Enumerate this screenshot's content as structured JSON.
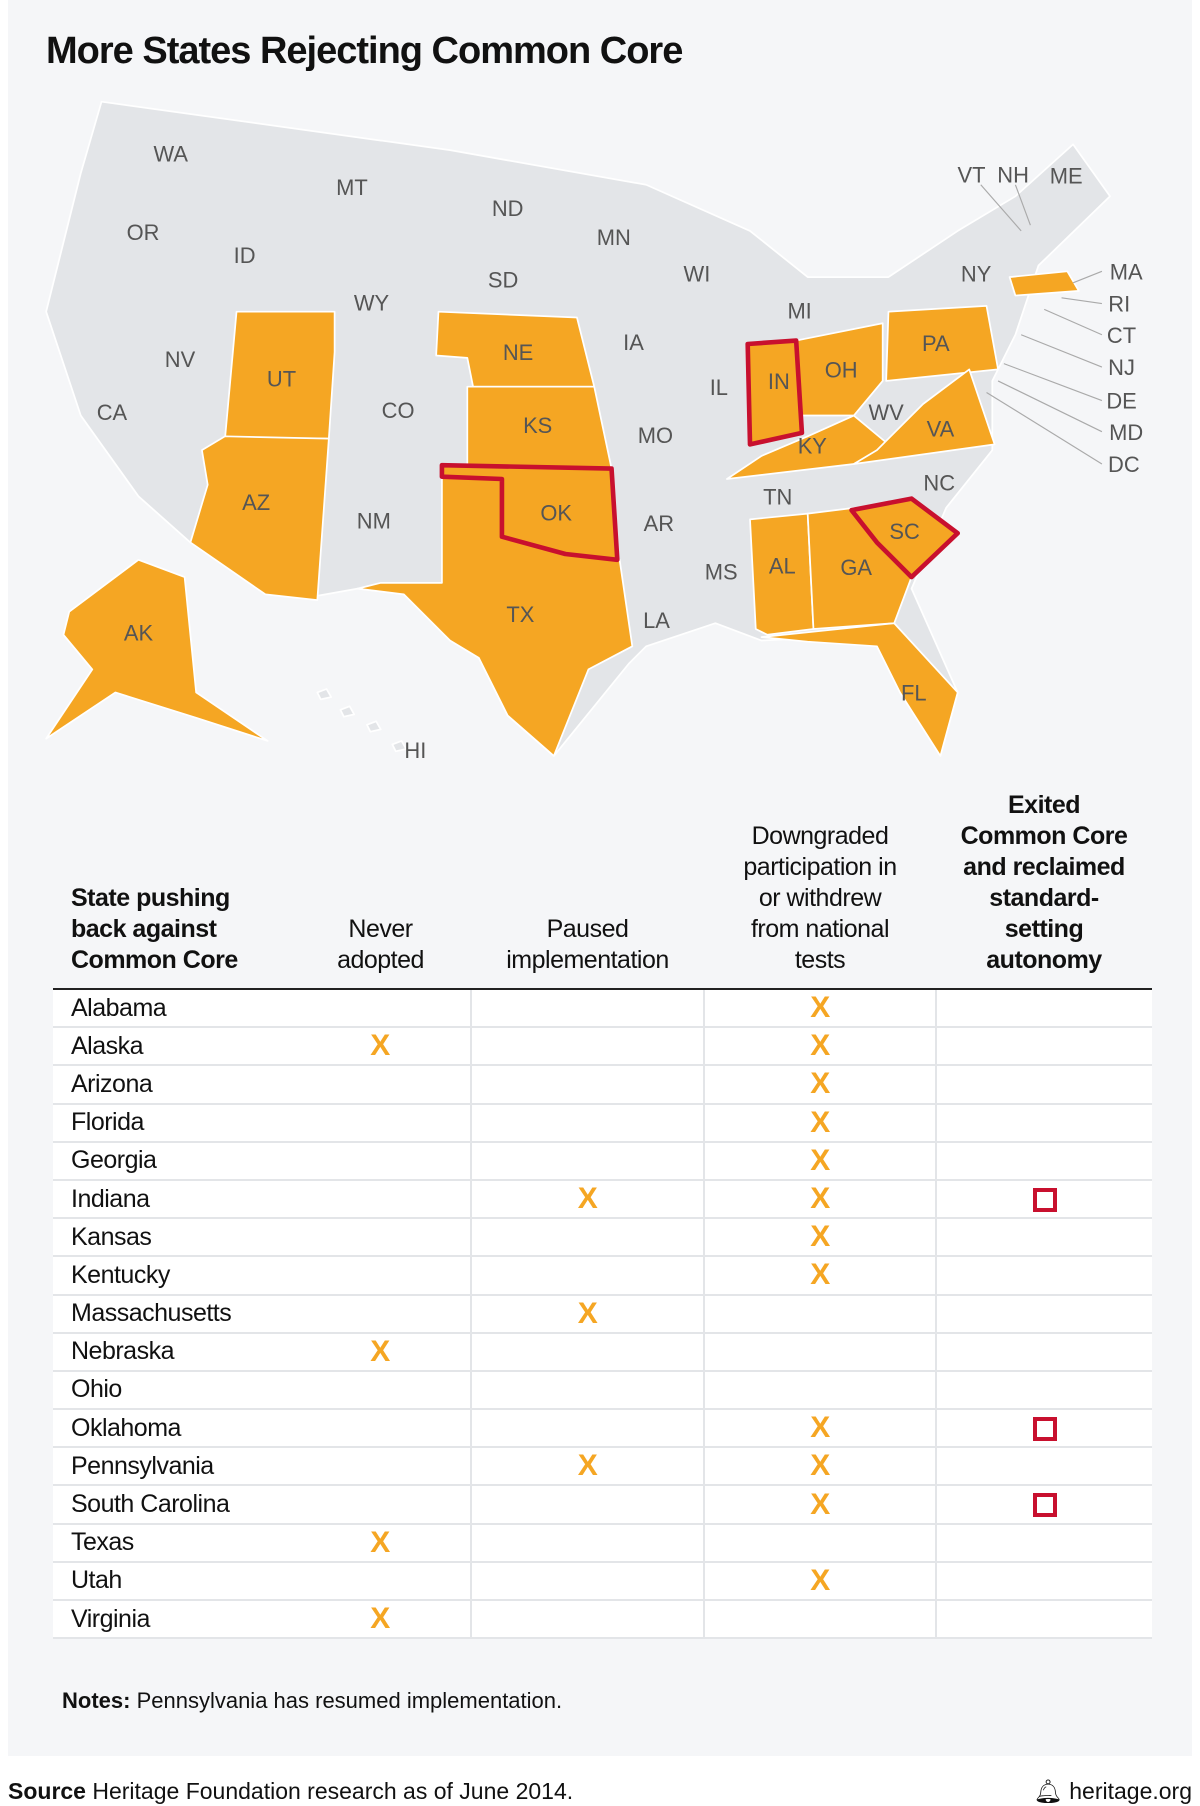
{
  "title": "More States Rejecting Common Core",
  "colors": {
    "rejecting": "#f5a623",
    "exited_outline": "#c8102e",
    "other": "#e3e5e8"
  },
  "map_labels": {
    "WA": "WA",
    "OR": "OR",
    "CA": "CA",
    "NV": "NV",
    "ID": "ID",
    "MT": "MT",
    "WY": "WY",
    "UT": "UT",
    "AZ": "AZ",
    "CO": "CO",
    "NM": "NM",
    "ND": "ND",
    "SD": "SD",
    "NE": "NE",
    "KS": "KS",
    "OK": "OK",
    "TX": "TX",
    "MN": "MN",
    "IA": "IA",
    "MO": "MO",
    "AR": "AR",
    "LA": "LA",
    "WI": "WI",
    "IL": "IL",
    "MI": "MI",
    "IN": "IN",
    "OH": "OH",
    "KY": "KY",
    "TN": "TN",
    "MS": "MS",
    "AL": "AL",
    "GA": "GA",
    "FL": "FL",
    "SC": "SC",
    "NC": "NC",
    "VA": "VA",
    "WV": "WV",
    "PA": "PA",
    "NY": "NY",
    "VT": "VT",
    "NH": "NH",
    "ME": "ME",
    "MA": "MA",
    "RI": "RI",
    "CT": "CT",
    "NJ": "NJ",
    "DE": "DE",
    "MD": "MD",
    "DC": "DC",
    "HI": "HI",
    "AK": "AK"
  },
  "chart_data": {
    "type": "table",
    "columns": [
      "State pushing back against Common Core",
      "Never adopted",
      "Paused implementation",
      "Downgraded participation in or withdrew from national tests",
      "Exited Common Core and reclaimed standard-setting autonomy"
    ],
    "rows": [
      {
        "state": "Alabama",
        "never": false,
        "paused": false,
        "downgraded": true,
        "exited": false
      },
      {
        "state": "Alaska",
        "never": true,
        "paused": false,
        "downgraded": true,
        "exited": false
      },
      {
        "state": "Arizona",
        "never": false,
        "paused": false,
        "downgraded": true,
        "exited": false
      },
      {
        "state": "Florida",
        "never": false,
        "paused": false,
        "downgraded": true,
        "exited": false
      },
      {
        "state": "Georgia",
        "never": false,
        "paused": false,
        "downgraded": true,
        "exited": false
      },
      {
        "state": "Indiana",
        "never": false,
        "paused": true,
        "downgraded": true,
        "exited": true
      },
      {
        "state": "Kansas",
        "never": false,
        "paused": false,
        "downgraded": true,
        "exited": false
      },
      {
        "state": "Kentucky",
        "never": false,
        "paused": false,
        "downgraded": true,
        "exited": false
      },
      {
        "state": "Massachusetts",
        "never": false,
        "paused": true,
        "downgraded": false,
        "exited": false
      },
      {
        "state": "Nebraska",
        "never": true,
        "paused": false,
        "downgraded": false,
        "exited": false
      },
      {
        "state": "Ohio",
        "never": false,
        "paused": false,
        "downgraded": false,
        "exited": false
      },
      {
        "state": "Oklahoma",
        "never": false,
        "paused": false,
        "downgraded": true,
        "exited": true
      },
      {
        "state": "Pennsylvania",
        "never": false,
        "paused": true,
        "downgraded": true,
        "exited": false
      },
      {
        "state": "South Carolina",
        "never": false,
        "paused": false,
        "downgraded": true,
        "exited": true
      },
      {
        "state": "Texas",
        "never": true,
        "paused": false,
        "downgraded": false,
        "exited": false
      },
      {
        "state": "Utah",
        "never": false,
        "paused": false,
        "downgraded": true,
        "exited": false
      },
      {
        "state": "Virginia",
        "never": true,
        "paused": false,
        "downgraded": false,
        "exited": false
      }
    ]
  },
  "header": {
    "c0a": "State pushing",
    "c0b": "back against",
    "c0c": "Common Core",
    "c1a": "Never",
    "c1b": "adopted",
    "c2a": "Paused",
    "c2b": "implementation",
    "c3a": "Downgraded",
    "c3b": "participation in",
    "c3c": "or withdrew",
    "c3d": "from national",
    "c3e": "tests",
    "c4a": "Exited",
    "c4b": "Common Core",
    "c4c": "and reclaimed",
    "c4d": "standard-",
    "c4e": "setting",
    "c4f": "autonomy"
  },
  "mark_symbol": "X",
  "notes": {
    "label": "Notes:",
    "text": " Pennsylvania has resumed implementation."
  },
  "source": {
    "label": "Source",
    "text": " Heritage Foundation research as of June 2014."
  },
  "brand": "heritage.org"
}
